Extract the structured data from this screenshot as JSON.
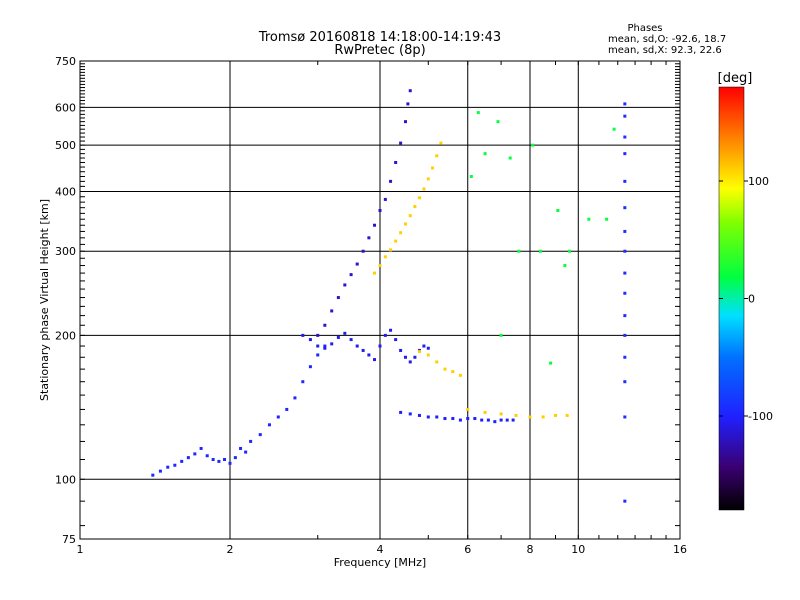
{
  "chart_data": {
    "type": "scatter",
    "title": "Tromsø 20160818 14:18:00-14:19:43",
    "subtitle": "RwPretec (8p)",
    "xlabel": "Frequency [MHz]",
    "ylabel": "Stationary phase Virtual Height [km]",
    "x_scale": "log",
    "y_scale": "log",
    "xlim": [
      1,
      16
    ],
    "ylim": [
      75,
      750
    ],
    "x_ticks": [
      1,
      2,
      4,
      6,
      8,
      10,
      16
    ],
    "y_ticks": [
      75,
      100,
      200,
      300,
      400,
      500,
      600,
      750
    ],
    "x_grid": [
      2,
      4,
      6,
      8,
      10
    ],
    "y_grid": [
      100,
      200,
      300,
      400,
      500,
      600
    ],
    "grid": true,
    "stats": {
      "heading": "Phases",
      "line_o": "mean, sd,O: -92.6, 18.7",
      "line_x": "mean, sd,X:  92.3, 22.6"
    },
    "colorbar": {
      "label": "[deg]",
      "range": [
        -180,
        180
      ],
      "ticks": [
        100,
        0,
        -100
      ],
      "tick_labels": [
        "100",
        "0",
        "-100"
      ]
    },
    "series": [
      {
        "phase": -95,
        "x": [
          1.4,
          1.45,
          1.5,
          1.55,
          1.6,
          1.65,
          1.7,
          1.75,
          1.8,
          1.85,
          1.9,
          1.95,
          2.0,
          2.05,
          2.1,
          2.15,
          2.2,
          2.3,
          2.4,
          2.5,
          2.6,
          2.7,
          2.8,
          2.9,
          3.0,
          3.1
        ],
        "y": [
          102,
          104,
          106,
          107,
          109,
          111,
          113,
          116,
          112,
          110,
          109,
          110,
          108,
          111,
          116,
          114,
          120,
          124,
          130,
          135,
          140,
          148,
          160,
          172,
          182,
          190
        ]
      },
      {
        "phase": -115,
        "x": [
          3.0,
          3.1,
          3.2,
          3.3,
          3.4,
          3.5,
          3.6,
          3.7,
          3.8,
          3.9,
          4.0,
          4.1,
          4.2,
          4.3,
          4.4,
          4.5,
          4.55,
          4.6
        ],
        "y": [
          200,
          210,
          225,
          240,
          255,
          268,
          282,
          300,
          320,
          340,
          365,
          385,
          420,
          460,
          505,
          560,
          610,
          650
        ]
      },
      {
        "phase": -105,
        "x": [
          2.8,
          2.9,
          3.0,
          3.1,
          3.2,
          3.3,
          3.4,
          3.5,
          3.6,
          3.7,
          3.8,
          3.9,
          4.0,
          4.1,
          4.2,
          4.3,
          4.4,
          4.5,
          4.6,
          4.7,
          4.8,
          4.9,
          5.0
        ],
        "y": [
          200,
          196,
          190,
          188,
          192,
          198,
          202,
          196,
          190,
          186,
          182,
          178,
          190,
          200,
          205,
          196,
          186,
          180,
          176,
          180,
          186,
          190,
          188
        ]
      },
      {
        "phase": -100,
        "x": [
          4.4,
          4.6,
          4.8,
          5.0,
          5.2,
          5.4,
          5.6,
          5.8,
          6.0,
          6.2,
          6.4,
          6.6,
          6.8,
          7.0,
          7.2,
          7.4
        ],
        "y": [
          138,
          137,
          136,
          135,
          135,
          134,
          134,
          133,
          134,
          134,
          133,
          133,
          132,
          133,
          133,
          133
        ]
      },
      {
        "phase": 110,
        "x": [
          3.9,
          4.0,
          4.1,
          4.2,
          4.3,
          4.4,
          4.5,
          4.6,
          4.7,
          4.8,
          4.9,
          5.0,
          5.1,
          5.2,
          5.3
        ],
        "y": [
          270,
          280,
          292,
          302,
          315,
          328,
          342,
          356,
          372,
          388,
          405,
          425,
          448,
          475,
          505
        ]
      },
      {
        "phase": 110,
        "x": [
          4.8,
          5.0,
          5.2,
          5.4,
          5.6,
          5.8,
          6.0,
          6.5,
          7.0,
          7.5,
          8.0,
          8.5,
          9.0,
          9.5
        ],
        "y": [
          185,
          182,
          176,
          170,
          168,
          165,
          140,
          138,
          137,
          136,
          135,
          135,
          136,
          136
        ]
      },
      {
        "phase": -90,
        "x": [
          12.4,
          12.4,
          12.4,
          12.4,
          12.4,
          12.4,
          12.4,
          12.4,
          12.4,
          12.4,
          12.4,
          12.4,
          12.4,
          12.4,
          12.4,
          12.4
        ],
        "y": [
          610,
          575,
          520,
          480,
          420,
          370,
          330,
          300,
          270,
          245,
          220,
          200,
          180,
          160,
          135,
          90
        ]
      },
      {
        "phase": 20,
        "x": [
          6.3,
          6.9,
          7.3,
          8.1,
          9.1,
          9.4,
          10.5,
          11.4,
          11.8,
          6.5,
          7.6,
          8.4,
          9.6,
          6.1,
          7.0,
          8.8
        ],
        "y": [
          585,
          560,
          470,
          500,
          365,
          280,
          350,
          350,
          540,
          480,
          300,
          300,
          300,
          430,
          200,
          175
        ]
      }
    ]
  }
}
